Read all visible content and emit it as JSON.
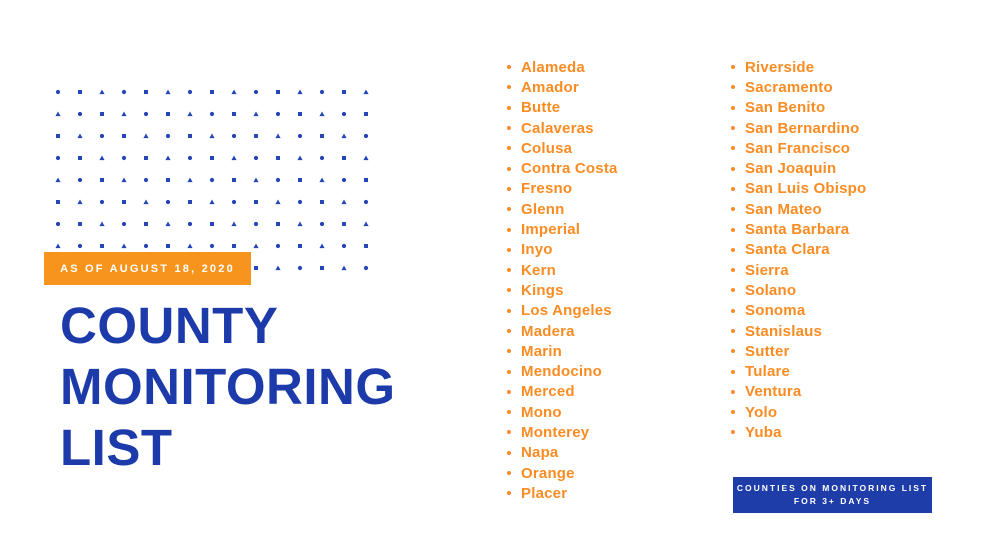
{
  "slide": {
    "badge_label": "AS OF AUGUST 18, 2020",
    "title_lines": [
      "COUNTY",
      "MONITORING",
      "LIST"
    ],
    "footer_box": {
      "line1": "COUNTIES ON MONITORING LIST",
      "line2": "FOR 3+ DAYS"
    }
  },
  "county_columns": [
    {
      "items": [
        "Alameda",
        "Amador",
        "Butte",
        "Calaveras",
        "Colusa",
        "Contra Costa",
        "Fresno",
        "Glenn",
        "Imperial",
        "Inyo",
        "Kern",
        "Kings",
        "Los Angeles",
        "Madera",
        "Marin",
        "Mendocino",
        "Merced",
        "Mono",
        "Monterey",
        "Napa",
        "Orange",
        "Placer"
      ]
    },
    {
      "items": [
        "Riverside",
        "Sacramento",
        "San Benito",
        "San Bernardino",
        "San Francisco",
        "San Joaquin",
        "San Luis Obispo",
        "San Mateo",
        "Santa Barbara",
        "Santa Clara",
        "Sierra",
        "Solano",
        "Sonoma",
        "Stanislaus",
        "Sutter",
        "Tulare",
        "Ventura",
        "Yolo",
        "Yuba"
      ]
    }
  ],
  "colors": {
    "accent_orange": "#F7941D",
    "list_orange": "#FB8C23",
    "title_blue": "#1C3AA9",
    "dot_blue": "#2545B8",
    "box_blue": "#1E3DA8",
    "background": "#FFFFFF"
  }
}
